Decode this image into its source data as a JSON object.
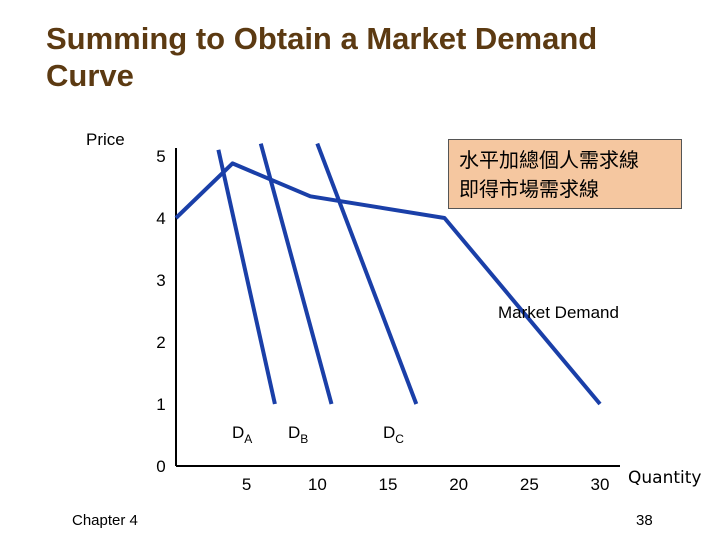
{
  "slide": {
    "title": "Summing to Obtain a Market Demand Curve",
    "footer_left": "Chapter 4",
    "page_number": "38",
    "annotation_line1": "水平加總個人需求線",
    "annotation_line2": "即得市場需求線"
  },
  "colors": {
    "title": "#5c3a12",
    "curve": "#1a3fa8",
    "annotation_bg": "#f5c7a0"
  },
  "chart_data": {
    "type": "line",
    "xlabel": "Quantity",
    "ylabel": "Price",
    "xlim": [
      0,
      30
    ],
    "ylim": [
      0,
      5
    ],
    "xticks": [
      5,
      10,
      15,
      20,
      25,
      30
    ],
    "yticks": [
      0,
      1,
      2,
      3,
      4,
      5
    ],
    "series": [
      {
        "name": "D",
        "sub": "A",
        "points": [
          [
            3,
            5.1
          ],
          [
            7,
            1
          ]
        ]
      },
      {
        "name": "D",
        "sub": "B",
        "points": [
          [
            6,
            5.2
          ],
          [
            11,
            1
          ]
        ]
      },
      {
        "name": "D",
        "sub": "C",
        "points": [
          [
            10,
            5.2
          ],
          [
            17,
            1
          ]
        ]
      },
      {
        "name": "Market Demand",
        "points": [
          [
            0,
            4
          ],
          [
            4,
            4.88
          ],
          [
            9.5,
            4.35
          ],
          [
            19,
            4
          ],
          [
            30,
            1
          ]
        ]
      }
    ]
  }
}
